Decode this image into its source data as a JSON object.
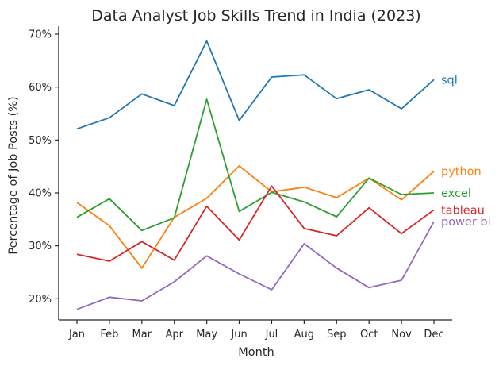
{
  "chart_data": {
    "type": "line",
    "title": "Data Analyst Job Skills Trend in India (2023)",
    "xlabel": "Month",
    "ylabel": "Percentage of Job Posts (%)",
    "categories": [
      "Jan",
      "Feb",
      "Mar",
      "Apr",
      "May",
      "Jun",
      "Jul",
      "Aug",
      "Sep",
      "Oct",
      "Nov",
      "Dec"
    ],
    "ylim": [
      16,
      71.5
    ],
    "yticks": [
      20,
      30,
      40,
      50,
      60,
      70
    ],
    "ytick_labels": [
      "20%",
      "30%",
      "40%",
      "50%",
      "60%",
      "70%"
    ],
    "grid": false,
    "legend": "labels at line ends",
    "series": [
      {
        "name": "sql",
        "color": "#1f77b4",
        "values": [
          52.1,
          54.2,
          58.7,
          56.5,
          68.7,
          53.7,
          61.9,
          62.3,
          57.8,
          59.5,
          55.9,
          61.4
        ]
      },
      {
        "name": "python",
        "color": "#ff7f0e",
        "values": [
          38.2,
          33.8,
          25.8,
          35.4,
          39.0,
          45.1,
          40.2,
          41.1,
          39.1,
          42.8,
          38.7,
          44.1
        ]
      },
      {
        "name": "excel",
        "color": "#2ca02c",
        "values": [
          35.4,
          38.9,
          32.9,
          35.3,
          57.7,
          36.5,
          40.1,
          38.3,
          35.5,
          42.8,
          39.7,
          40.0
        ]
      },
      {
        "name": "tableau",
        "color": "#d62728",
        "values": [
          28.4,
          27.1,
          30.8,
          27.3,
          37.5,
          31.1,
          41.3,
          33.3,
          31.9,
          37.2,
          32.3,
          36.8
        ]
      },
      {
        "name": "power bi",
        "color": "#9467bd",
        "values": [
          18.0,
          20.3,
          19.6,
          23.2,
          28.1,
          24.7,
          21.7,
          30.4,
          25.8,
          22.1,
          23.5,
          34.6
        ]
      }
    ]
  }
}
